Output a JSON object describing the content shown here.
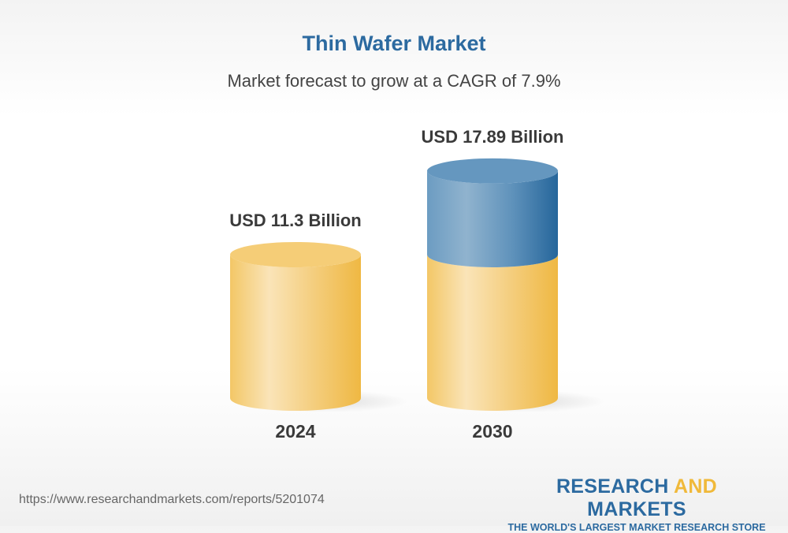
{
  "chart_data": {
    "type": "bar",
    "title": "Thin Wafer Market",
    "subtitle": "Market forecast to grow at a CAGR of 7.9%",
    "categories": [
      "2024",
      "2030"
    ],
    "values": [
      11.3,
      17.89
    ],
    "data_labels": [
      "USD 11.3 Billion",
      "USD 17.89 Billion"
    ],
    "style": "3d-cylinder",
    "colors": {
      "base": "#f2c15a",
      "growth": "#2c6aa0"
    },
    "grid": false
  },
  "footer": {
    "url": "https://www.researchandmarkets.com/reports/5201074",
    "logo_part1": "RESEARCH",
    "logo_part2": "AND",
    "logo_part3": "MARKETS",
    "logo_tagline": "THE WORLD'S LARGEST MARKET RESEARCH STORE"
  }
}
